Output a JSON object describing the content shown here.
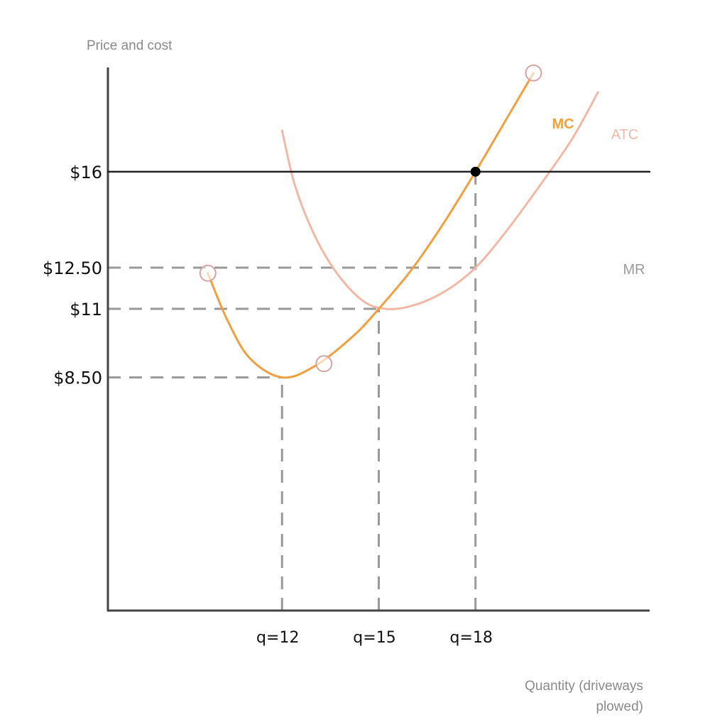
{
  "chart_data": {
    "type": "line",
    "ylabel": "Price and cost",
    "xlabel_lines": [
      "Quantity (driveways",
      "plowed)"
    ],
    "x_range": [
      6.6,
      23.4
    ],
    "y_range": [
      0,
      19.8
    ],
    "x_ticks": [
      {
        "value": 12,
        "label": "q=12"
      },
      {
        "value": 15,
        "label": "q=15"
      },
      {
        "value": 18,
        "label": "q=18"
      }
    ],
    "y_ticks": [
      {
        "value": 16,
        "label": "$16"
      },
      {
        "value": 12.5,
        "label": "$12.50"
      },
      {
        "value": 11,
        "label": "$11"
      },
      {
        "value": 8.5,
        "label": "$8.50"
      }
    ],
    "series": [
      {
        "name": "MC",
        "color": "#f0a040",
        "points": [
          [
            9.7,
            12.3
          ],
          [
            10.3,
            10.6
          ],
          [
            11.0,
            9.2
          ],
          [
            12.0,
            8.5
          ],
          [
            13.0,
            8.9
          ],
          [
            14.2,
            10.0
          ],
          [
            15.0,
            11.0
          ],
          [
            16.0,
            12.4
          ],
          [
            17.0,
            14.1
          ],
          [
            18.0,
            16.0
          ],
          [
            19.0,
            18.0
          ],
          [
            19.8,
            19.6
          ]
        ],
        "endpoint_markers": [
          [
            9.7,
            12.3
          ],
          [
            13.3,
            9.0
          ],
          [
            19.8,
            19.6
          ]
        ]
      },
      {
        "name": "ATC",
        "color": "#f2b8a6",
        "points": [
          [
            12.0,
            17.5
          ],
          [
            12.4,
            15.5
          ],
          [
            13.0,
            13.7
          ],
          [
            13.7,
            12.3
          ],
          [
            14.5,
            11.3
          ],
          [
            15.2,
            11.0
          ],
          [
            16.0,
            11.1
          ],
          [
            17.0,
            11.6
          ],
          [
            18.0,
            12.5
          ],
          [
            19.0,
            13.9
          ],
          [
            20.0,
            15.5
          ],
          [
            21.0,
            17.2
          ],
          [
            21.8,
            18.9
          ]
        ]
      },
      {
        "name": "MR",
        "color": "#222222",
        "points": [
          [
            6.6,
            16
          ],
          [
            23.4,
            16
          ]
        ]
      }
    ],
    "guide_lines": [
      {
        "axis": "h",
        "y": 12.5,
        "from_x": 6.6,
        "to_x": 18
      },
      {
        "axis": "h",
        "y": 11,
        "from_x": 6.6,
        "to_x": 15
      },
      {
        "axis": "h",
        "y": 8.5,
        "from_x": 6.6,
        "to_x": 12
      },
      {
        "axis": "v",
        "x": 12,
        "from_y": 0,
        "to_y": 8.5
      },
      {
        "axis": "v",
        "x": 15,
        "from_y": 0,
        "to_y": 11
      },
      {
        "axis": "v",
        "x": 18,
        "from_y": 0,
        "to_y": 16
      }
    ],
    "highlight_point": {
      "x": 18,
      "y": 16
    },
    "grid": false,
    "legend": "none"
  }
}
